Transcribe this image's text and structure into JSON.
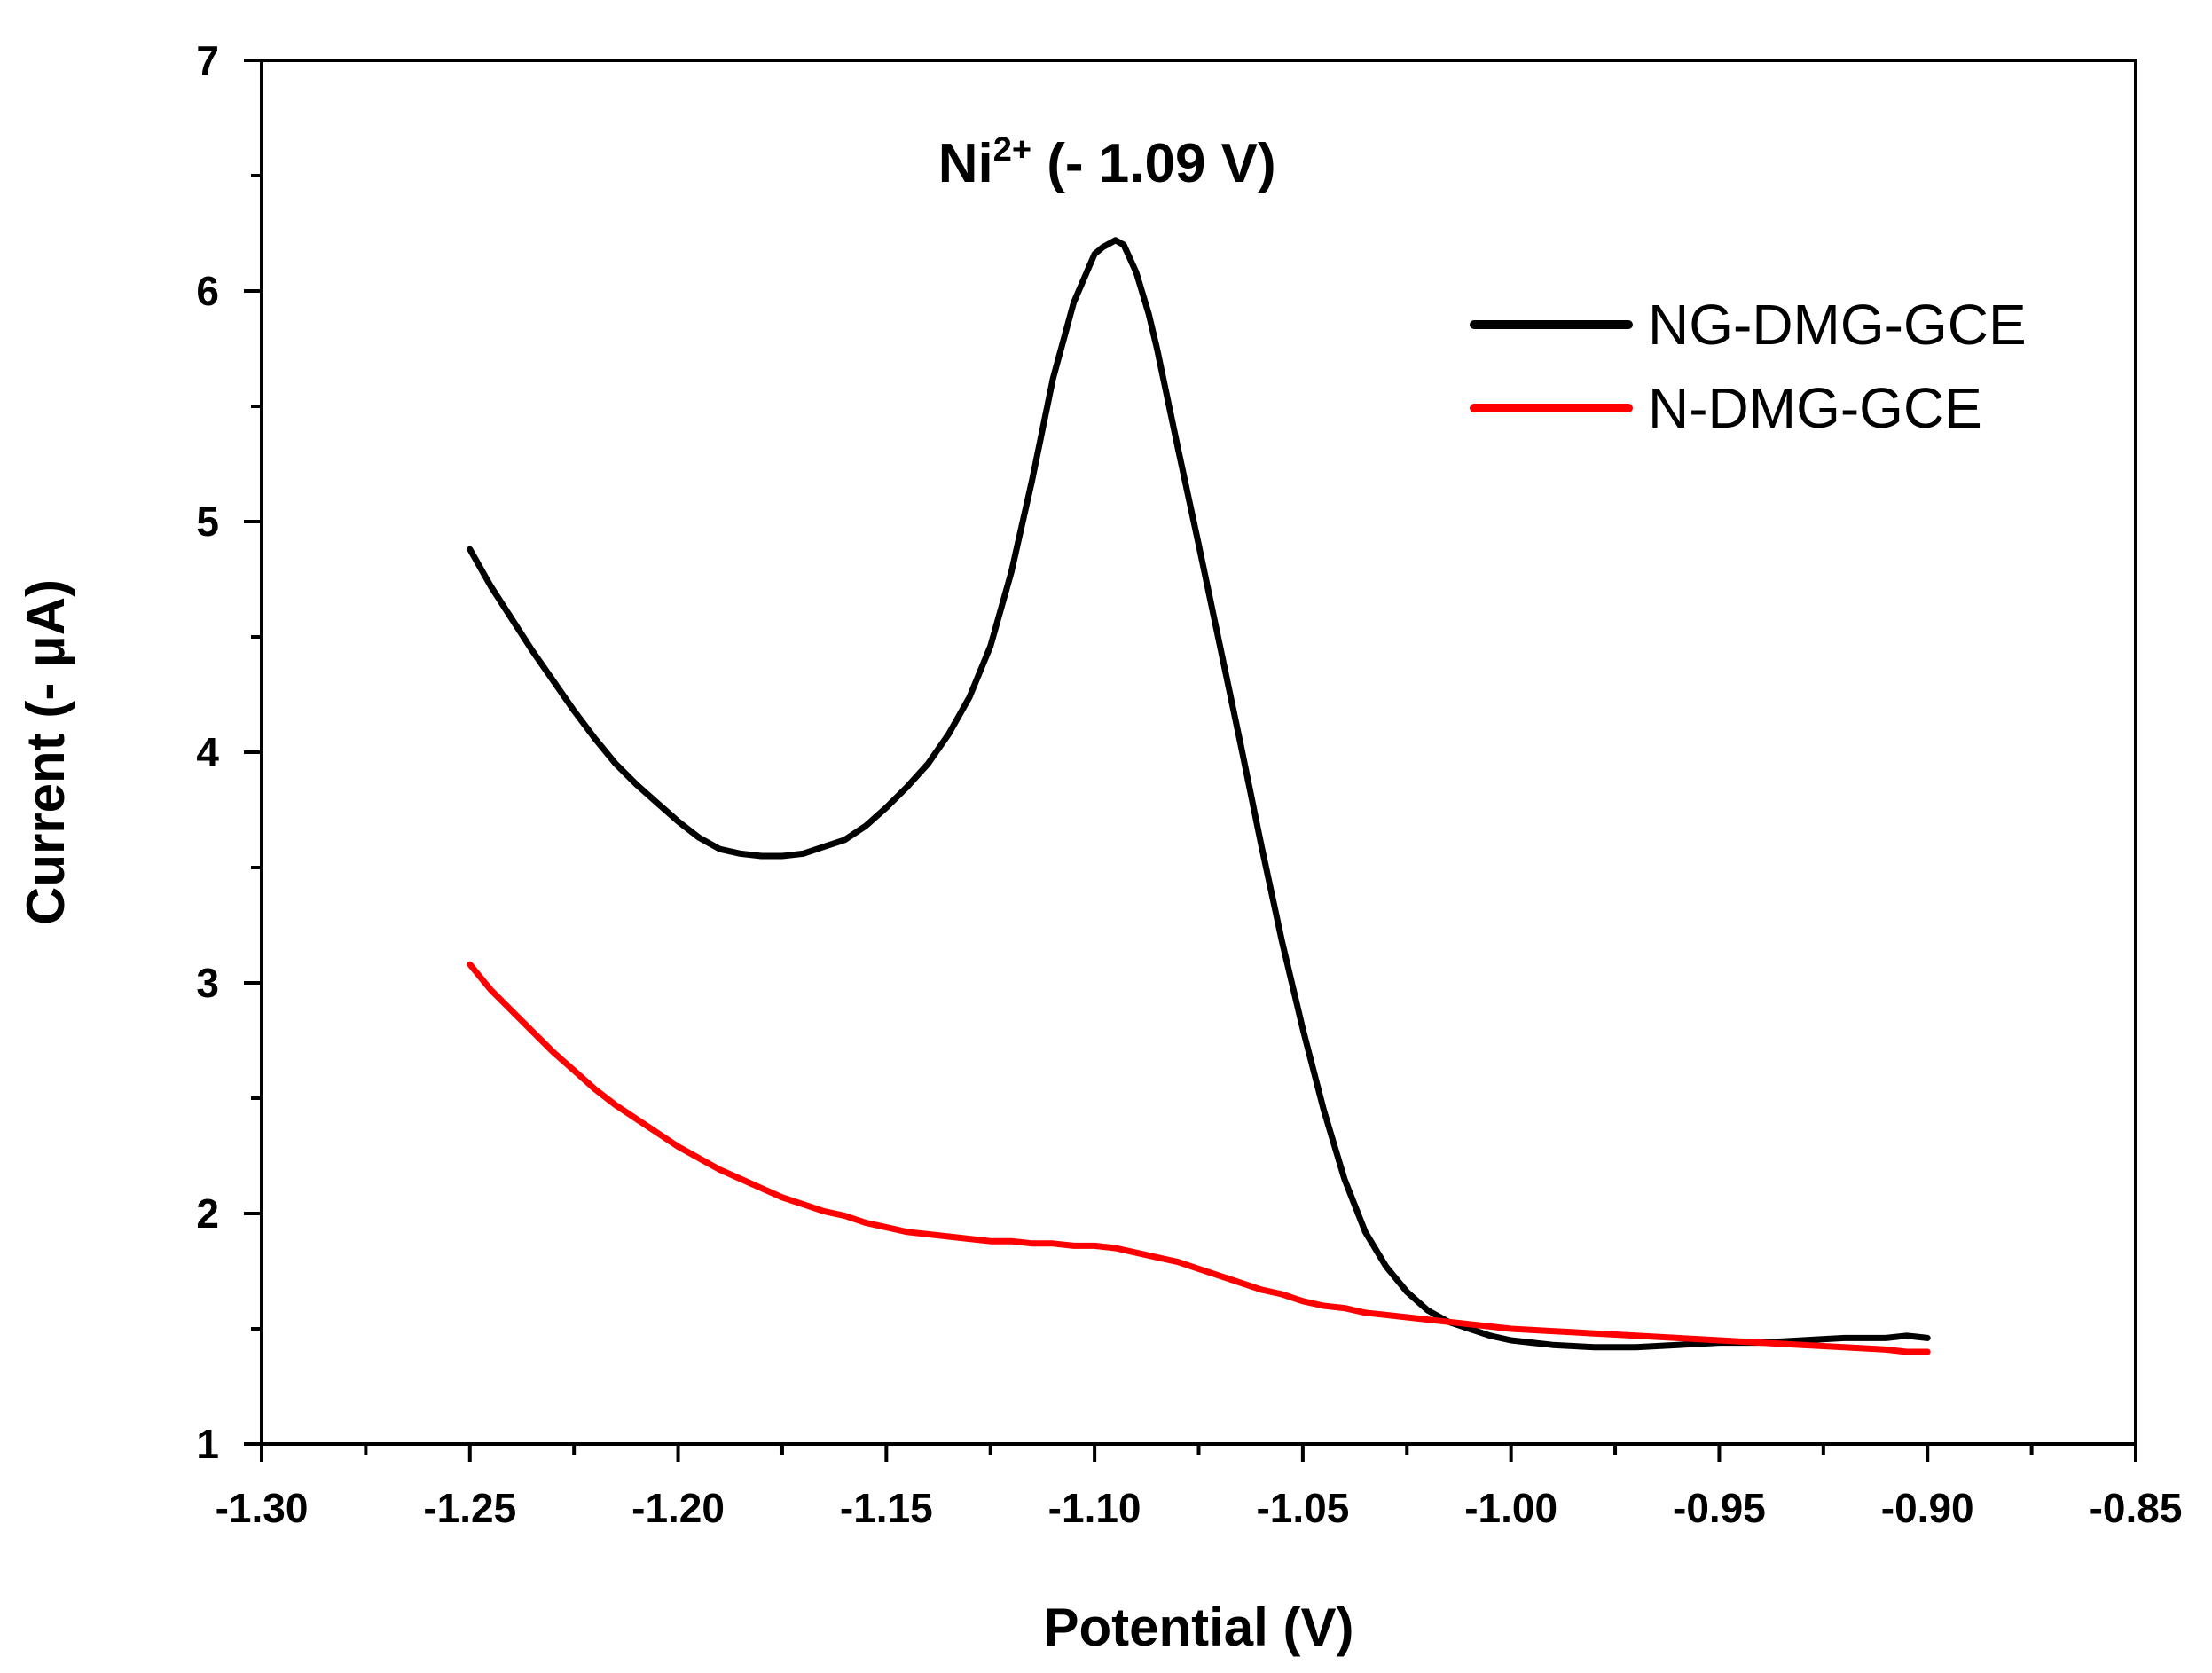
{
  "chart_data": {
    "type": "line",
    "title": "",
    "xlabel": "Potential (V)",
    "ylabel": "Current (- μA)",
    "xlim": [
      -1.3,
      -0.85
    ],
    "ylim": [
      1,
      7
    ],
    "x_ticks": [
      -1.3,
      -1.25,
      -1.2,
      -1.15,
      -1.1,
      -1.05,
      -1.0,
      -0.95,
      -0.9,
      -0.85
    ],
    "x_tick_labels": [
      "-1.30",
      "-1.25",
      "-1.20",
      "-1.15",
      "-1.10",
      "-1.05",
      "-1.00",
      "-0.95",
      "-0.90",
      "-0.85"
    ],
    "y_ticks": [
      1,
      2,
      3,
      4,
      5,
      6,
      7
    ],
    "y_tick_labels": [
      "1",
      "2",
      "3",
      "4",
      "5",
      "6",
      "7"
    ],
    "grid": false,
    "legend_position": "top-right",
    "annotation": {
      "base": "Ni",
      "sup": "2+",
      "rest": " (- 1.09 V)",
      "x": -1.097,
      "y": 6.55
    },
    "series": [
      {
        "name": "NG-DMG-GCE",
        "color": "#000000",
        "x": [
          -1.25,
          -1.245,
          -1.24,
          -1.235,
          -1.23,
          -1.225,
          -1.22,
          -1.215,
          -1.21,
          -1.205,
          -1.2,
          -1.195,
          -1.19,
          -1.185,
          -1.18,
          -1.175,
          -1.17,
          -1.165,
          -1.16,
          -1.155,
          -1.15,
          -1.145,
          -1.14,
          -1.135,
          -1.13,
          -1.125,
          -1.12,
          -1.115,
          -1.11,
          -1.105,
          -1.1,
          -1.098,
          -1.095,
          -1.093,
          -1.09,
          -1.087,
          -1.085,
          -1.08,
          -1.075,
          -1.07,
          -1.065,
          -1.06,
          -1.055,
          -1.05,
          -1.045,
          -1.04,
          -1.035,
          -1.03,
          -1.025,
          -1.02,
          -1.015,
          -1.01,
          -1.005,
          -1.0,
          -0.995,
          -0.99,
          -0.98,
          -0.97,
          -0.96,
          -0.95,
          -0.94,
          -0.93,
          -0.92,
          -0.91,
          -0.905,
          -0.9
        ],
        "y": [
          4.88,
          4.72,
          4.58,
          4.44,
          4.31,
          4.18,
          4.06,
          3.95,
          3.86,
          3.78,
          3.7,
          3.63,
          3.58,
          3.56,
          3.55,
          3.55,
          3.56,
          3.59,
          3.62,
          3.68,
          3.76,
          3.85,
          3.95,
          4.08,
          4.24,
          4.46,
          4.78,
          5.18,
          5.62,
          5.95,
          6.16,
          6.19,
          6.22,
          6.2,
          6.08,
          5.9,
          5.75,
          5.32,
          4.9,
          4.47,
          4.04,
          3.6,
          3.18,
          2.8,
          2.45,
          2.15,
          1.92,
          1.77,
          1.66,
          1.58,
          1.53,
          1.5,
          1.47,
          1.45,
          1.44,
          1.43,
          1.42,
          1.42,
          1.43,
          1.44,
          1.44,
          1.45,
          1.46,
          1.46,
          1.47,
          1.46
        ]
      },
      {
        "name": "N-DMG-GCE",
        "color": "#ff0000",
        "x": [
          -1.25,
          -1.245,
          -1.24,
          -1.235,
          -1.23,
          -1.225,
          -1.22,
          -1.215,
          -1.21,
          -1.205,
          -1.2,
          -1.195,
          -1.19,
          -1.185,
          -1.18,
          -1.175,
          -1.17,
          -1.165,
          -1.16,
          -1.155,
          -1.15,
          -1.145,
          -1.14,
          -1.135,
          -1.13,
          -1.125,
          -1.12,
          -1.115,
          -1.11,
          -1.105,
          -1.1,
          -1.095,
          -1.09,
          -1.085,
          -1.08,
          -1.075,
          -1.07,
          -1.065,
          -1.06,
          -1.055,
          -1.05,
          -1.045,
          -1.04,
          -1.035,
          -1.03,
          -1.025,
          -1.02,
          -1.015,
          -1.01,
          -1.005,
          -1.0,
          -0.99,
          -0.98,
          -0.97,
          -0.96,
          -0.95,
          -0.94,
          -0.93,
          -0.92,
          -0.91,
          -0.905,
          -0.9
        ],
        "y": [
          3.08,
          2.97,
          2.88,
          2.79,
          2.7,
          2.62,
          2.54,
          2.47,
          2.41,
          2.35,
          2.29,
          2.24,
          2.19,
          2.15,
          2.11,
          2.07,
          2.04,
          2.01,
          1.99,
          1.96,
          1.94,
          1.92,
          1.91,
          1.9,
          1.89,
          1.88,
          1.88,
          1.87,
          1.87,
          1.86,
          1.86,
          1.85,
          1.83,
          1.81,
          1.79,
          1.76,
          1.73,
          1.7,
          1.67,
          1.65,
          1.62,
          1.6,
          1.59,
          1.57,
          1.56,
          1.55,
          1.54,
          1.53,
          1.52,
          1.51,
          1.5,
          1.49,
          1.48,
          1.47,
          1.46,
          1.45,
          1.44,
          1.43,
          1.42,
          1.41,
          1.4,
          1.4
        ]
      }
    ]
  }
}
